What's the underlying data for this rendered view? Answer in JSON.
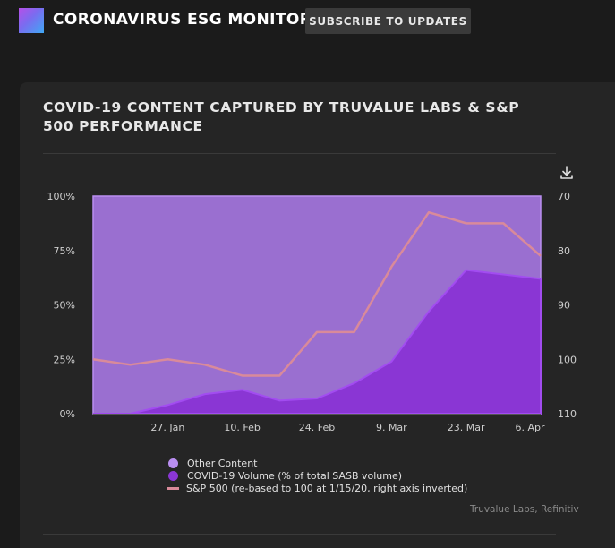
{
  "app": {
    "title": "CORONAVIRUS ESG MONITOR",
    "subscribe_label": "SUBSCRIBE TO UPDATES"
  },
  "card": {
    "title": "COVID-19 CONTENT CAPTURED BY TRUVALUE LABS & S&P 500 PERFORMANCE",
    "source": "Truvalue Labs, Refinitiv"
  },
  "icons": {
    "download": "download-icon"
  },
  "colors": {
    "page_bg": "#1b1b1b",
    "card_bg": "#252525",
    "other_content": "#9a6fd0",
    "covid_volume": "#8a36d4",
    "sp500": "#d98a9a"
  },
  "legend": {
    "other_label": "Other Content",
    "covid_label": "COVID-19 Volume (% of total SASB volume)",
    "sp_label": "S&P 500 (re-based to 100 at 1/15/20, right axis inverted)"
  },
  "chart_data": {
    "type": "area",
    "x_tick_labels": [
      "27. Jan",
      "10. Feb",
      "24. Feb",
      "9. Mar",
      "23. Mar",
      "6. Apr"
    ],
    "x": [
      "2020-01-13",
      "2020-01-20",
      "2020-01-27",
      "2020-02-03",
      "2020-02-10",
      "2020-02-17",
      "2020-02-24",
      "2020-03-02",
      "2020-03-09",
      "2020-03-16",
      "2020-03-23",
      "2020-03-30",
      "2020-04-06"
    ],
    "series": [
      {
        "name": "Other Content",
        "type": "area",
        "axis": "left",
        "values": [
          100,
          100,
          96,
          91,
          89,
          94,
          93,
          86,
          76,
          53,
          34,
          36,
          38
        ]
      },
      {
        "name": "COVID-19 Volume (% of total SASB volume)",
        "type": "area",
        "axis": "left",
        "values": [
          0,
          0,
          4,
          9,
          11,
          6,
          7,
          14,
          24,
          47,
          66,
          64,
          62
        ]
      },
      {
        "name": "S&P 500 (re-based to 100 at 1/15/20, right axis inverted)",
        "type": "line",
        "axis": "right",
        "values": [
          100,
          101,
          100,
          101,
          103,
          103,
          95,
          95,
          83,
          73,
          75,
          75,
          81
        ]
      }
    ],
    "y_left": {
      "ticks": [
        "0%",
        "25%",
        "50%",
        "75%",
        "100%"
      ],
      "range": [
        0,
        100
      ]
    },
    "y_right": {
      "ticks": [
        "70",
        "80",
        "90",
        "100",
        "110"
      ],
      "range": [
        70,
        110
      ],
      "inverted": true
    },
    "grid": false,
    "legend_position": "bottom"
  }
}
